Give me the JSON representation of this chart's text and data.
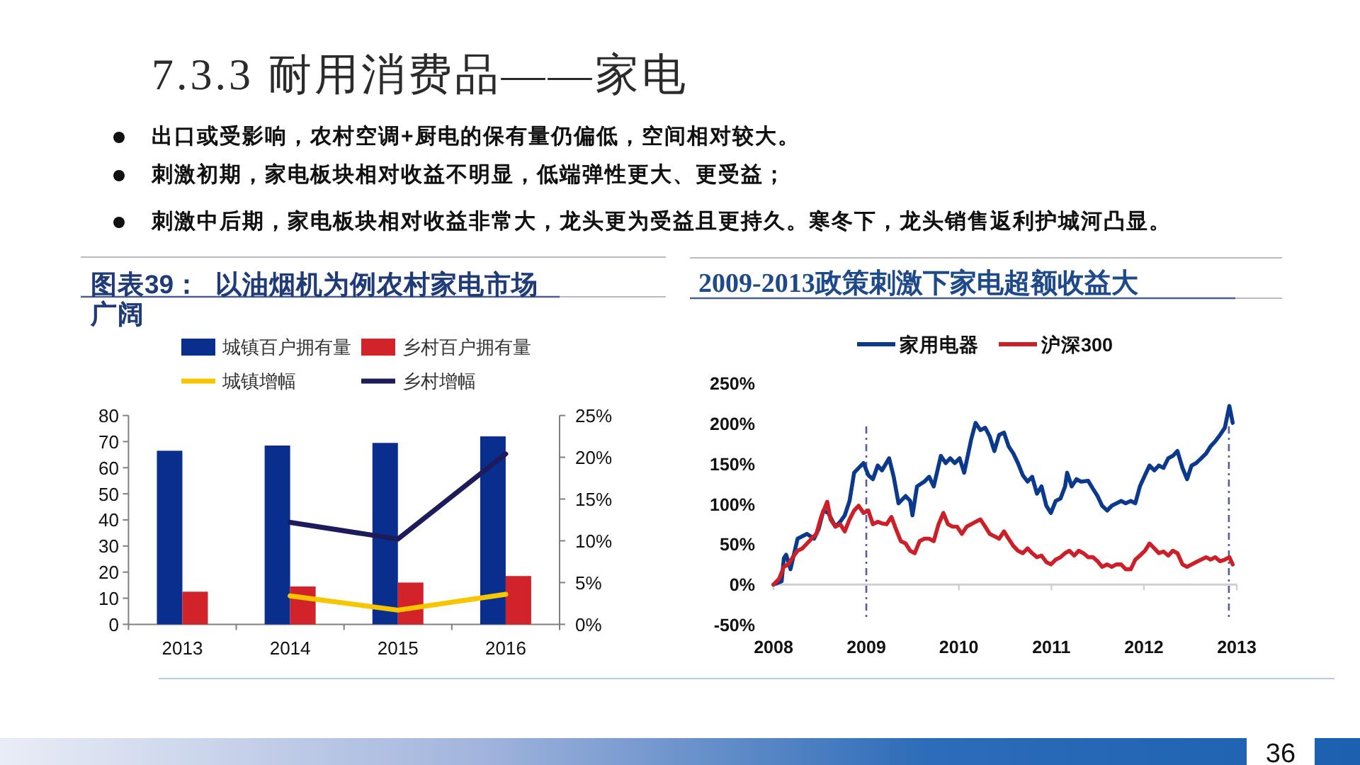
{
  "chart_data": [
    {
      "type": "other",
      "title": "7.3.3 耐用消费品——家电",
      "annotations": [
        "出口或受影响，农村空调+厨电的保有量仍偏低，空间相对较大。",
        "刺激初期，家电板块相对收益不明显，低端弹性更大、更受益；",
        "刺激中后期，家电板块相对收益非常大，龙头更为受益且更持久。寒冬下，龙头销售返利护城河凸显。",
        "36"
      ]
    },
    {
      "type": "bar",
      "title": "图表39：  以油烟机为例农村家电市场广阔",
      "categories": [
        "2013",
        "2014",
        "2015",
        "2016"
      ],
      "series": [
        {
          "name": "城镇百户拥有量",
          "color": "#0a2e8e",
          "values": [
            66.5,
            68.5,
            69.5,
            72
          ]
        },
        {
          "name": "乡村百户拥有量",
          "color": "#d2232a",
          "values": [
            12.5,
            14.5,
            16,
            18.5
          ]
        },
        {
          "name": "城镇增幅",
          "type": "line",
          "axis": "y2",
          "color": "#f7c600",
          "values": [
            null,
            3.4,
            1.7,
            3.6
          ]
        },
        {
          "name": "乡村增幅",
          "type": "line",
          "axis": "y2",
          "color": "#1e1b5c",
          "values": [
            null,
            12.2,
            10.2,
            20.4
          ]
        }
      ],
      "ylim": [
        0,
        80
      ],
      "yticks": [
        0,
        10,
        20,
        30,
        40,
        50,
        60,
        70,
        80
      ],
      "y2lim": [
        0,
        25
      ],
      "y2ticks": [
        {
          "value": 0,
          "label": "0%"
        },
        {
          "value": 5,
          "label": "5%"
        },
        {
          "value": 10,
          "label": "10%"
        },
        {
          "value": 15,
          "label": "15%"
        },
        {
          "value": 20,
          "label": "20%"
        },
        {
          "value": 25,
          "label": "25%"
        }
      ],
      "legend": "top"
    },
    {
      "type": "line",
      "title": "2009-2013政策刺激下家电超额收益大",
      "series": [
        {
          "name": "家用电器",
          "color": "#0b3a8c",
          "x": [
            "2008-01-01",
            "2008-02-02",
            "2008-02-11",
            "2008-02-20",
            "2008-03-08",
            "2008-04-05",
            "2008-05-12",
            "2008-06-09",
            "2008-06-27",
            "2008-07-16",
            "2008-08-04",
            "2008-09-01",
            "2008-09-20",
            "2008-10-08",
            "2008-10-27",
            "2008-11-14",
            "2008-12-02",
            "2008-12-21",
            "2009-01-09",
            "2009-01-27",
            "2009-02-15",
            "2009-03-04",
            "2009-04-01",
            "2009-04-19",
            "2009-05-08",
            "2009-06-05",
            "2009-06-23",
            "2009-07-02",
            "2009-07-20",
            "2009-08-18",
            "2009-09-06",
            "2009-09-24",
            "2009-10-22",
            "2009-11-10",
            "2009-11-28",
            "2009-12-16",
            "2010-01-04",
            "2010-01-22",
            "2010-02-19",
            "2010-03-08",
            "2010-03-27",
            "2010-04-15",
            "2010-05-03",
            "2010-05-21",
            "2010-06-09",
            "2010-06-28",
            "2010-07-16",
            "2010-08-04",
            "2010-08-22",
            "2010-09-10",
            "2010-09-29",
            "2010-10-17",
            "2010-11-05",
            "2010-11-23",
            "2010-12-12",
            "2010-12-30",
            "2011-01-18",
            "2011-02-06",
            "2011-02-24",
            "2011-03-04",
            "2011-03-22",
            "2011-04-10",
            "2011-04-28",
            "2011-05-26",
            "2011-06-14",
            "2011-07-02",
            "2011-07-20",
            "2011-08-09",
            "2011-08-27",
            "2011-09-15",
            "2011-10-03",
            "2011-10-21",
            "2011-11-10",
            "2011-11-28",
            "2011-12-16",
            "2012-01-05",
            "2012-01-23",
            "2012-02-11",
            "2012-02-29",
            "2012-03-18",
            "2012-04-06",
            "2012-04-24",
            "2012-05-12",
            "2012-06-01",
            "2012-06-19",
            "2012-07-07",
            "2012-07-25",
            "2012-08-14",
            "2012-09-02",
            "2012-09-20",
            "2012-10-08",
            "2012-10-27",
            "2012-11-15",
            "2012-12-03",
            "2012-12-16"
          ],
          "values": [
            0,
            4,
            33,
            37,
            19,
            57,
            63,
            57,
            69,
            92,
            89,
            72,
            78,
            86,
            104,
            139,
            145,
            151,
            136,
            131,
            148,
            142,
            157,
            134,
            101,
            110,
            104,
            86,
            122,
            128,
            134,
            122,
            160,
            151,
            157,
            151,
            157,
            139,
            181,
            201,
            192,
            195,
            184,
            166,
            186,
            189,
            172,
            163,
            151,
            136,
            128,
            134,
            113,
            122,
            98,
            89,
            104,
            107,
            122,
            139,
            122,
            131,
            128,
            129,
            119,
            110,
            98,
            92,
            98,
            101,
            104,
            101,
            104,
            101,
            122,
            136,
            148,
            142,
            148,
            145,
            157,
            160,
            166,
            145,
            131,
            148,
            151,
            157,
            163,
            172,
            178,
            186,
            195,
            222,
            201
          ]
        },
        {
          "name": "沪深300",
          "color": "#cc1f27",
          "x": [
            "2008-01-01",
            "2008-01-23",
            "2008-02-11",
            "2008-02-28",
            "2008-03-17",
            "2008-04-05",
            "2008-04-24",
            "2008-05-12",
            "2008-05-30",
            "2008-06-18",
            "2008-07-07",
            "2008-07-31",
            "2008-08-13",
            "2008-09-01",
            "2008-09-20",
            "2008-10-08",
            "2008-10-27",
            "2008-11-14",
            "2008-12-02",
            "2008-12-21",
            "2009-01-09",
            "2009-01-27",
            "2009-02-15",
            "2009-03-04",
            "2009-03-22",
            "2009-04-10",
            "2009-04-28",
            "2009-05-17",
            "2009-06-05",
            "2009-06-23",
            "2009-07-11",
            "2009-07-30",
            "2009-08-18",
            "2009-09-06",
            "2009-09-24",
            "2009-10-13",
            "2009-11-01",
            "2009-11-19",
            "2009-12-07",
            "2009-12-25",
            "2010-01-13",
            "2010-02-01",
            "2010-02-19",
            "2010-03-08",
            "2010-03-27",
            "2010-04-15",
            "2010-05-03",
            "2010-05-21",
            "2010-06-09",
            "2010-06-28",
            "2010-07-16",
            "2010-08-04",
            "2010-08-22",
            "2010-09-10",
            "2010-09-29",
            "2010-10-17",
            "2010-11-05",
            "2010-11-23",
            "2010-12-12",
            "2010-12-30",
            "2011-01-18",
            "2011-02-06",
            "2011-02-24",
            "2011-03-13",
            "2011-04-01",
            "2011-04-19",
            "2011-05-07",
            "2011-05-26",
            "2011-06-14",
            "2011-07-02",
            "2011-07-20",
            "2011-08-09",
            "2011-08-27",
            "2011-09-15",
            "2011-10-03",
            "2011-10-21",
            "2011-11-10",
            "2011-11-28",
            "2011-12-16",
            "2012-01-05",
            "2012-01-23",
            "2012-02-11",
            "2012-02-29",
            "2012-03-18",
            "2012-04-06",
            "2012-04-24",
            "2012-05-12",
            "2012-06-01",
            "2012-06-19",
            "2012-07-07",
            "2012-07-25",
            "2012-08-14",
            "2012-09-02",
            "2012-09-20",
            "2012-10-08",
            "2012-10-27",
            "2012-11-15",
            "2012-12-03",
            "2012-12-16"
          ],
          "values": [
            0,
            7,
            22,
            25,
            34,
            42,
            45,
            51,
            57,
            63,
            84,
            103,
            81,
            72,
            75,
            66,
            81,
            92,
            98,
            89,
            92,
            75,
            78,
            76,
            75,
            84,
            69,
            54,
            51,
            42,
            39,
            54,
            57,
            57,
            54,
            75,
            89,
            75,
            72,
            72,
            63,
            72,
            75,
            78,
            81,
            72,
            63,
            60,
            57,
            66,
            57,
            48,
            42,
            39,
            45,
            39,
            34,
            36,
            28,
            25,
            31,
            34,
            39,
            42,
            36,
            42,
            39,
            34,
            34,
            29,
            22,
            25,
            22,
            25,
            25,
            19,
            19,
            31,
            36,
            42,
            51,
            45,
            39,
            41,
            36,
            42,
            39,
            25,
            22,
            25,
            28,
            31,
            34,
            31,
            34,
            29,
            31,
            34,
            25
          ]
        }
      ],
      "xlim": [
        "2008-01-01",
        "2013-01-01"
      ],
      "xticks": [
        {
          "value": "2008",
          "label": "2008"
        },
        {
          "value": "2009",
          "label": "2009"
        },
        {
          "value": "2010",
          "label": "2010"
        },
        {
          "value": "2011",
          "label": "2011"
        },
        {
          "value": "2012",
          "label": "2012"
        },
        {
          "value": "2013",
          "label": "2013"
        }
      ],
      "ylim": [
        -50,
        250
      ],
      "yticks": [
        {
          "value": -50,
          "label": "-50%"
        },
        {
          "value": 0,
          "label": "0%"
        },
        {
          "value": 50,
          "label": "50%"
        },
        {
          "value": 100,
          "label": "100%"
        },
        {
          "value": 150,
          "label": "150%"
        },
        {
          "value": 200,
          "label": "200%"
        },
        {
          "value": 250,
          "label": "250%"
        }
      ],
      "ref_lines": [
        {
          "axis": "x",
          "value": "2009",
          "color": "#5a5aa0",
          "line_style": "dashed"
        },
        {
          "axis": "x",
          "value": "2012-12",
          "color": "#5a5aa0",
          "line_style": "dashed"
        }
      ],
      "legend": "top"
    }
  ]
}
